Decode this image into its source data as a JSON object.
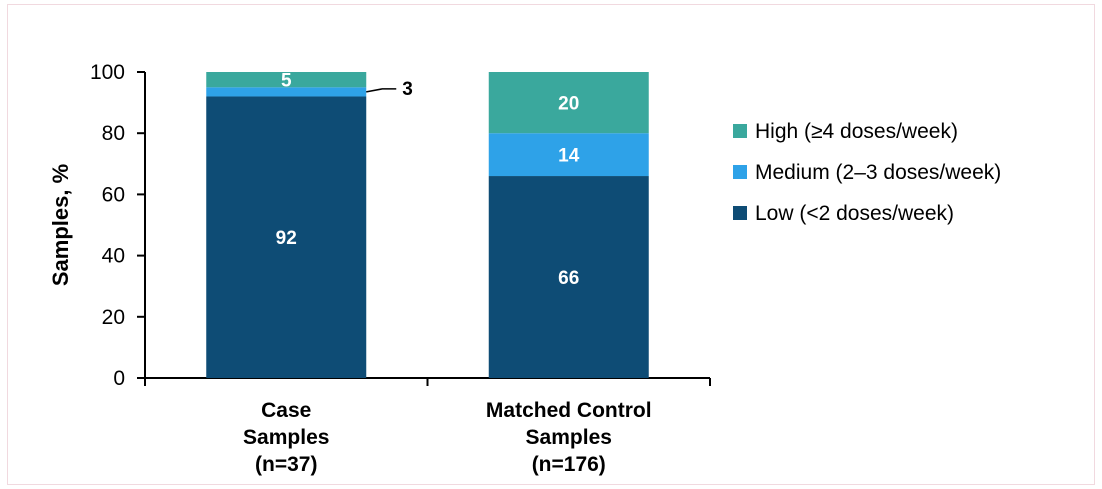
{
  "chart_data": {
    "type": "bar",
    "stacked": true,
    "categories": [
      [
        "Case",
        "Samples",
        "(n=37)"
      ],
      [
        "Matched Control",
        "Samples",
        "(n=176)"
      ]
    ],
    "series": [
      {
        "name": "Low (<2 doses/week)",
        "values": [
          92,
          66
        ],
        "color": "#0e4c75"
      },
      {
        "name": "Medium (2–3 doses/week)",
        "values": [
          3,
          14
        ],
        "color": "#2ea2e8"
      },
      {
        "name": "High (≥4 doses/week)",
        "values": [
          5,
          20
        ],
        "color": "#3aa89d"
      }
    ],
    "ylabel": "Samples, %",
    "ylim": [
      0,
      100
    ],
    "yticks": [
      0,
      20,
      40,
      60,
      80,
      100
    ],
    "grid": false,
    "legend_position": "right",
    "legend_order": [
      2,
      1,
      0
    ],
    "outside_labels": [
      {
        "category": 0,
        "series": 1,
        "text": "3"
      }
    ]
  }
}
